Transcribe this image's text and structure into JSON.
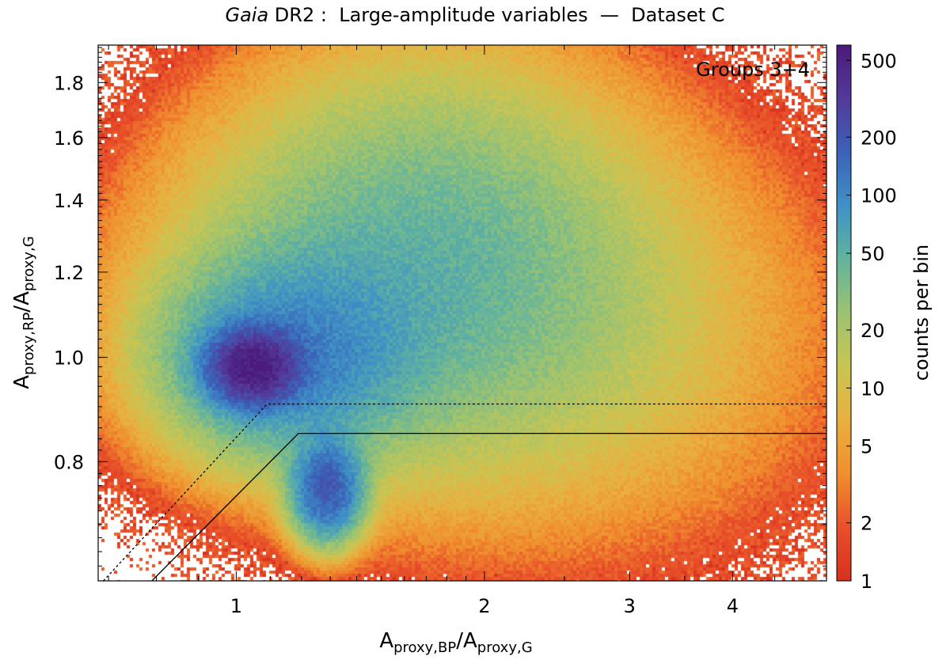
{
  "chart_data": {
    "type": "heatmap",
    "title": {
      "italic_part": "Gaia",
      "rest": " DR2 :  Large-amplitude variables  —  Dataset C"
    },
    "xlabel": {
      "base1": "A",
      "sub1": "proxy,BP",
      "slash": "/",
      "base2": "A",
      "sub2": "proxy,G"
    },
    "ylabel": {
      "base1": "A",
      "sub1": "proxy,RP",
      "slash": "/",
      "base2": "A",
      "sub2": "proxy,G"
    },
    "x_scale": "log",
    "y_scale": "log",
    "xlim": [
      0.68,
      5.2
    ],
    "ylim": [
      0.62,
      1.95
    ],
    "x_ticks": [
      {
        "value": 1,
        "label": "1"
      },
      {
        "value": 2,
        "label": "2"
      },
      {
        "value": 3,
        "label": "3"
      },
      {
        "value": 4,
        "label": "4"
      }
    ],
    "y_ticks": [
      {
        "value": 0.8,
        "label": "0.8"
      },
      {
        "value": 1.0,
        "label": "1.0"
      },
      {
        "value": 1.2,
        "label": "1.2"
      },
      {
        "value": 1.4,
        "label": "1.4"
      },
      {
        "value": 1.6,
        "label": "1.6"
      },
      {
        "value": 1.8,
        "label": "1.8"
      }
    ],
    "annotation": "Groups 3+4",
    "colorbar": {
      "label": "counts per bin",
      "scale": "log",
      "range": [
        1,
        600
      ],
      "ticks": [
        {
          "value": 1,
          "label": "1"
        },
        {
          "value": 2,
          "label": "2"
        },
        {
          "value": 5,
          "label": "5"
        },
        {
          "value": 10,
          "label": "10"
        },
        {
          "value": 20,
          "label": "20"
        },
        {
          "value": 50,
          "label": "50"
        },
        {
          "value": 100,
          "label": "100"
        },
        {
          "value": 200,
          "label": "200"
        },
        {
          "value": 500,
          "label": "500"
        }
      ],
      "colors": [
        "#d7301f",
        "#e8502a",
        "#f08f2e",
        "#e9b040",
        "#c9c553",
        "#9cc370",
        "#62b39e",
        "#3f92c6",
        "#3b62b8",
        "#533a9a",
        "#4b1a7a"
      ]
    },
    "density_components": [
      {
        "name": "main peak",
        "x": 1.05,
        "y": 0.98,
        "sigma_x": 0.07,
        "sigma_y": 0.045,
        "peak_counts": 520
      },
      {
        "name": "secondary peak",
        "x": 1.29,
        "y": 0.755,
        "sigma_x": 0.055,
        "sigma_y": 0.06,
        "peak_counts": 190
      },
      {
        "name": "blue halo",
        "x": 1.15,
        "y": 1.0,
        "sigma_x": 0.2,
        "sigma_y": 0.12,
        "peak_counts": 95
      },
      {
        "name": "broad green",
        "x": 1.6,
        "y": 1.15,
        "sigma_x": 0.38,
        "sigma_y": 0.22,
        "peak_counts": 36
      },
      {
        "name": "upper extension",
        "x": 1.7,
        "y": 1.45,
        "sigma_x": 0.34,
        "sigma_y": 0.22,
        "peak_counts": 14
      },
      {
        "name": "right tail",
        "x": 2.6,
        "y": 1.05,
        "sigma_x": 0.45,
        "sigma_y": 0.28,
        "peak_counts": 9
      }
    ],
    "boundary_lines": [
      {
        "name": "dashed selection boundary",
        "style": "dashed",
        "points": [
          [
            0.69,
            0.62
          ],
          [
            1.09,
            0.905
          ],
          [
            5.2,
            0.905
          ]
        ]
      },
      {
        "name": "solid selection boundary",
        "style": "solid",
        "points": [
          [
            0.79,
            0.62
          ],
          [
            1.19,
            0.85
          ],
          [
            5.2,
            0.85
          ]
        ]
      }
    ]
  }
}
